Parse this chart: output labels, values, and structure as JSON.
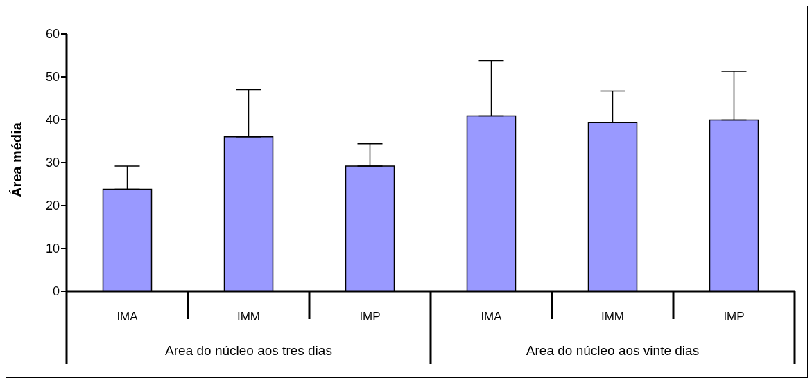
{
  "chart_data": {
    "type": "bar",
    "ylabel": "Área média",
    "categories": [
      "IMA",
      "IMM",
      "IMP",
      "IMA",
      "IMM",
      "IMP"
    ],
    "values": [
      23.8,
      36.0,
      29.2,
      40.9,
      39.3,
      39.9
    ],
    "errors": [
      [
        23.8,
        29.2
      ],
      [
        36.0,
        47.0
      ],
      [
        29.2,
        34.4
      ],
      [
        40.9,
        53.8
      ],
      [
        39.3,
        46.7
      ],
      [
        39.9,
        51.3
      ]
    ],
    "color": "#9999ff",
    "ylim": [
      0,
      60
    ],
    "yticks": [
      0,
      10,
      20,
      30,
      40,
      50,
      60
    ],
    "annotations": [
      "Area do núcleo aos tres dias",
      "Area do núcleo aos vinte dias"
    ]
  }
}
